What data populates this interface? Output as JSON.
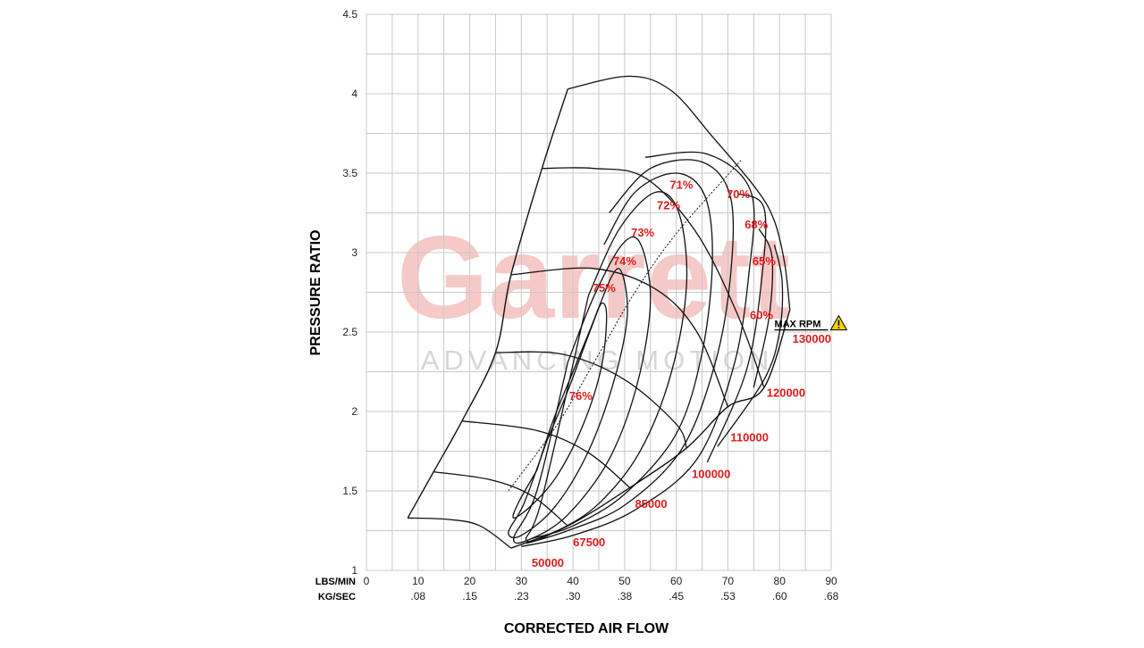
{
  "chart_data": {
    "type": "line",
    "xlabel": "CORRECTED AIR FLOW",
    "ylabel": "PRESSURE RATIO",
    "x_units": [
      "LBS/MIN",
      "KG/SEC"
    ],
    "xlim": [
      0,
      90
    ],
    "ylim": [
      1,
      4.5
    ],
    "x_ticks": [
      "0",
      "10",
      "20",
      "30",
      "40",
      "50",
      "60",
      "70",
      "80",
      "90"
    ],
    "x_ticks_kg": [
      "",
      ".08",
      ".15",
      ".23",
      ".30",
      ".38",
      ".45",
      ".53",
      ".60",
      ".68"
    ],
    "y_ticks": [
      "1",
      "1.5",
      "2",
      "2.5",
      "3",
      "3.5",
      "4",
      "4.5"
    ],
    "grid": true,
    "watermark": {
      "brand": "Garrett",
      "tagline": "ADVANCING MOTION"
    },
    "max_rpm": {
      "label": "MAX RPM",
      "icon": "warning-icon",
      "color": "#f2d200"
    },
    "speed_lines": [
      {
        "rpm": "50000",
        "points": [
          [
            8,
            1.33
          ],
          [
            16,
            1.32
          ],
          [
            22,
            1.28
          ],
          [
            28,
            1.14
          ]
        ]
      },
      {
        "rpm": "67500",
        "points": [
          [
            13,
            1.62
          ],
          [
            24,
            1.57
          ],
          [
            32,
            1.47
          ],
          [
            39,
            1.28
          ]
        ]
      },
      {
        "rpm": "85000",
        "points": [
          [
            18.5,
            1.94
          ],
          [
            33,
            1.88
          ],
          [
            43,
            1.74
          ],
          [
            51,
            1.52
          ]
        ]
      },
      {
        "rpm": "100000",
        "points": [
          [
            25,
            2.37
          ],
          [
            38,
            2.36
          ],
          [
            50,
            2.2
          ],
          [
            60,
            1.92
          ],
          [
            62,
            1.77
          ]
        ]
      },
      {
        "rpm": "110000",
        "points": [
          [
            28,
            2.86
          ],
          [
            44,
            2.9
          ],
          [
            56,
            2.77
          ],
          [
            64,
            2.5
          ],
          [
            70,
            2.03
          ]
        ]
      },
      {
        "rpm": "120000",
        "points": [
          [
            34,
            3.53
          ],
          [
            44,
            3.53
          ],
          [
            54,
            3.47
          ],
          [
            64,
            3.12
          ],
          [
            72,
            2.6
          ],
          [
            77,
            2.15
          ]
        ]
      },
      {
        "rpm": "130000",
        "points": [
          [
            39,
            4.03
          ],
          [
            51,
            4.11
          ],
          [
            59,
            4.02
          ],
          [
            67,
            3.73
          ],
          [
            75.5,
            3.4
          ],
          [
            79,
            3.2
          ],
          [
            81,
            2.93
          ],
          [
            82,
            2.64
          ]
        ]
      }
    ],
    "efficiency_islands": [
      {
        "label": "76%",
        "points": [
          [
            33,
            1.63
          ],
          [
            36,
            1.93
          ],
          [
            40,
            2.25
          ],
          [
            43.5,
            2.53
          ],
          [
            45.5,
            2.68
          ],
          [
            46.5,
            2.6
          ],
          [
            45.5,
            2.28
          ],
          [
            42,
            1.92
          ],
          [
            37,
            1.6
          ],
          [
            32,
            1.41
          ],
          [
            28.5,
            1.33
          ],
          [
            29.5,
            1.43
          ],
          [
            33,
            1.63
          ]
        ]
      },
      {
        "label": "75%",
        "points": [
          [
            35,
            1.82
          ],
          [
            39,
            2.13
          ],
          [
            43,
            2.48
          ],
          [
            47.5,
            2.85
          ],
          [
            49.5,
            2.87
          ],
          [
            50.5,
            2.6
          ],
          [
            48,
            2.2
          ],
          [
            43,
            1.75
          ],
          [
            36.5,
            1.4
          ],
          [
            30,
            1.22
          ],
          [
            27.5,
            1.24
          ],
          [
            30.5,
            1.42
          ],
          [
            35,
            1.82
          ]
        ]
      },
      {
        "label": "74%",
        "points": [
          [
            39,
            2.31
          ],
          [
            44,
            2.72
          ],
          [
            49.5,
            3.05
          ],
          [
            53,
            3.06
          ],
          [
            55,
            2.7
          ],
          [
            52.5,
            2.18
          ],
          [
            47,
            1.7
          ],
          [
            39,
            1.35
          ],
          [
            32,
            1.2
          ],
          [
            28.5,
            1.2
          ],
          [
            33,
            1.5
          ],
          [
            39,
            2.31
          ]
        ]
      },
      {
        "label": "73%",
        "points": [
          [
            43,
            2.73
          ],
          [
            49,
            3.15
          ],
          [
            56,
            3.38
          ],
          [
            60.5,
            3.25
          ],
          [
            62,
            2.8
          ],
          [
            59,
            2.24
          ],
          [
            53,
            1.75
          ],
          [
            45,
            1.42
          ],
          [
            37,
            1.25
          ],
          [
            31,
            1.19
          ],
          [
            34,
            1.45
          ],
          [
            43,
            2.73
          ]
        ]
      },
      {
        "label": "72%",
        "points": [
          [
            46,
            3.05
          ],
          [
            52,
            3.38
          ],
          [
            60,
            3.5
          ],
          [
            65.5,
            3.36
          ],
          [
            67,
            2.95
          ],
          [
            65,
            2.37
          ],
          [
            60,
            1.86
          ],
          [
            50,
            1.48
          ],
          [
            40,
            1.28
          ],
          [
            32,
            1.2
          ]
        ]
      },
      {
        "label": "71%",
        "points": [
          [
            47,
            3.25
          ],
          [
            55,
            3.53
          ],
          [
            65,
            3.57
          ],
          [
            70.5,
            3.35
          ],
          [
            70.5,
            2.85
          ],
          [
            67.5,
            2.3
          ],
          [
            61,
            1.76
          ],
          [
            50,
            1.41
          ],
          [
            39,
            1.25
          ],
          [
            31,
            1.17
          ]
        ]
      },
      {
        "label": "70%",
        "points": [
          [
            54,
            3.6
          ],
          [
            66,
            3.62
          ],
          [
            74.5,
            3.38
          ],
          [
            74,
            2.85
          ],
          [
            71,
            2.27
          ],
          [
            64,
            1.7
          ],
          [
            52,
            1.38
          ],
          [
            40,
            1.22
          ],
          [
            30,
            1.15
          ]
        ]
      },
      {
        "label": "68%",
        "points": [
          [
            72,
            3.37
          ],
          [
            77,
            3.28
          ],
          [
            76.5,
            2.82
          ],
          [
            73.5,
            2.25
          ],
          [
            66,
            1.68
          ]
        ]
      },
      {
        "label": "65%",
        "points": [
          [
            76,
            3.15
          ],
          [
            78.5,
            2.98
          ],
          [
            78,
            2.6
          ],
          [
            75,
            2.15
          ]
        ]
      },
      {
        "label": "60%",
        "points": [
          [
            79,
            3.05
          ],
          [
            80.5,
            2.82
          ],
          [
            80,
            2.5
          ],
          [
            77,
            2.2
          ],
          [
            68,
            1.78
          ]
        ]
      }
    ],
    "surge_line": [
      [
        8,
        1.33
      ],
      [
        13,
        1.62
      ],
      [
        18.5,
        1.94
      ],
      [
        25,
        2.37
      ],
      [
        28,
        2.86
      ],
      [
        34,
        3.53
      ],
      [
        39,
        4.03
      ]
    ],
    "choke_line": [
      [
        28,
        1.14
      ],
      [
        39,
        1.28
      ],
      [
        51,
        1.52
      ],
      [
        62,
        1.77
      ],
      [
        70,
        2.03
      ],
      [
        77,
        2.15
      ],
      [
        82,
        2.64
      ]
    ],
    "peak_efficiency_line": [
      [
        27.5,
        1.5
      ],
      [
        37,
        1.92
      ],
      [
        45,
        2.36
      ],
      [
        52,
        2.75
      ],
      [
        60,
        3.12
      ],
      [
        72.5,
        3.58
      ]
    ],
    "efficiency_labels": [
      {
        "text": "71%",
        "x": 61,
        "y": 3.43
      },
      {
        "text": "70%",
        "x": 72,
        "y": 3.37
      },
      {
        "text": "72%",
        "x": 58.5,
        "y": 3.3
      },
      {
        "text": "68%",
        "x": 75.5,
        "y": 3.18
      },
      {
        "text": "73%",
        "x": 53.5,
        "y": 3.13
      },
      {
        "text": "65%",
        "x": 77,
        "y": 2.95
      },
      {
        "text": "74%",
        "x": 50,
        "y": 2.95
      },
      {
        "text": "75%",
        "x": 46,
        "y": 2.78
      },
      {
        "text": "60%",
        "x": 76.5,
        "y": 2.61
      },
      {
        "text": "76%",
        "x": 41.5,
        "y": 2.1
      }
    ],
    "speed_labels": [
      {
        "text": "130000",
        "x": 82.5,
        "y": 2.46
      },
      {
        "text": "120000",
        "x": 77.5,
        "y": 2.12
      },
      {
        "text": "110000",
        "x": 70.5,
        "y": 1.84
      },
      {
        "text": "100000",
        "x": 63,
        "y": 1.61
      },
      {
        "text": "85000",
        "x": 52,
        "y": 1.42
      },
      {
        "text": "67500",
        "x": 40,
        "y": 1.18
      },
      {
        "text": "50000",
        "x": 32,
        "y": 1.05
      }
    ],
    "max_rpm_position": {
      "x": 79,
      "y": 2.53
    }
  }
}
